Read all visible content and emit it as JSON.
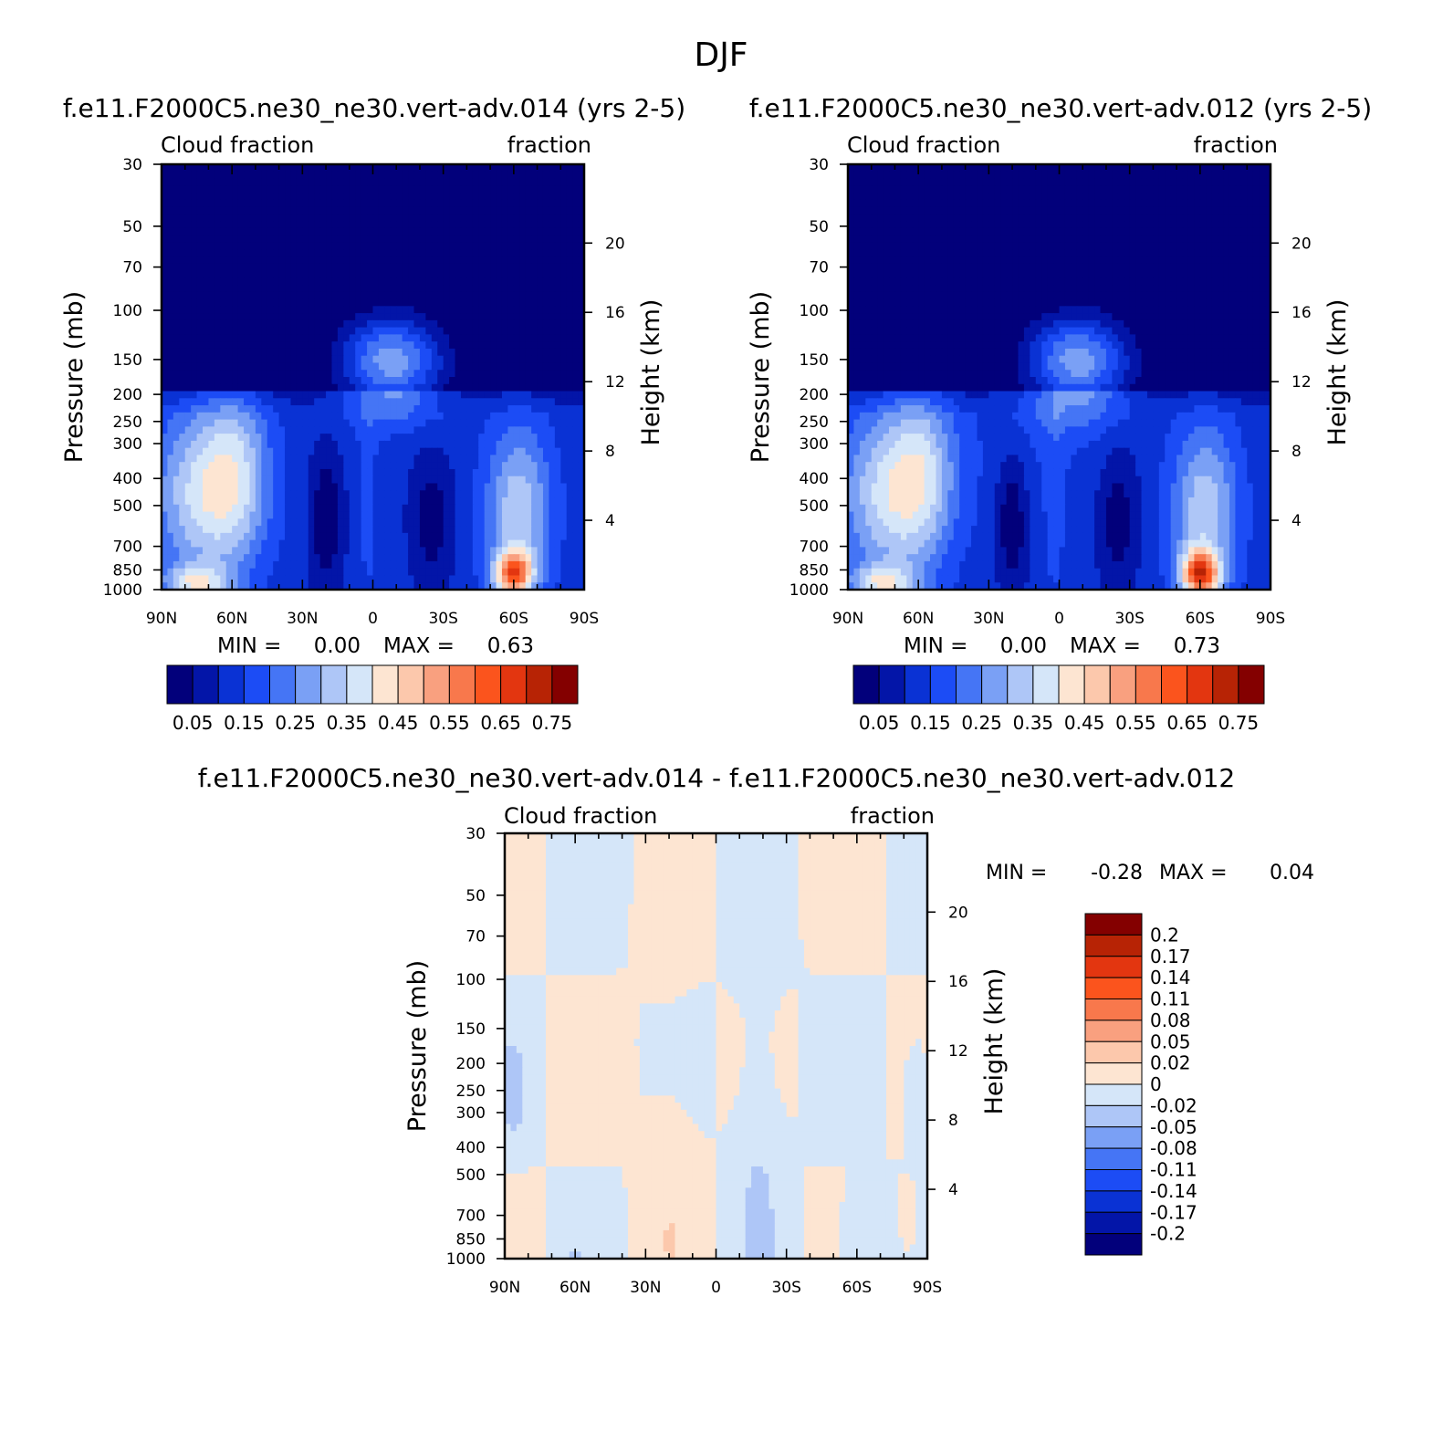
{
  "figure": {
    "title": "DJF",
    "colors": {
      "seq": [
        "#02007b",
        "#0315a8",
        "#0a32d4",
        "#1c4cf5",
        "#4575f5",
        "#7aa0f5",
        "#aec6f7",
        "#d5e6f9",
        "#fde5d2",
        "#fcc8ac",
        "#f9a07f",
        "#f8784c",
        "#fb541d",
        "#e33610",
        "#b72305",
        "#840000"
      ],
      "diff": [
        "#02007b",
        "#0315a8",
        "#0a32d4",
        "#1c4cf5",
        "#4575f5",
        "#7aa0f5",
        "#aec6f7",
        "#d5e6f9",
        "#fde5d2",
        "#fcc8ac",
        "#f9a07f",
        "#f8784c",
        "#fb541d",
        "#e33610",
        "#b72305",
        "#840000"
      ]
    }
  },
  "chart_data": [
    {
      "type": "heatmap",
      "title": "f.e11.F2000C5.ne30_ne30.vert-adv.014 (yrs 2-5)",
      "left_label": "Cloud fraction",
      "right_label": "fraction",
      "ylabel": "Pressure (mb)",
      "ylabel_right": "Height (km)",
      "x_ticklabels": [
        "90N",
        "60N",
        "30N",
        "0",
        "30S",
        "60S",
        "90S"
      ],
      "x_values": [
        90,
        60,
        30,
        0,
        -30,
        -60,
        -90
      ],
      "y_ticklabels": [
        "30",
        "50",
        "70",
        "100",
        "150",
        "200",
        "250",
        "300",
        "400",
        "500",
        "700",
        "850",
        "1000"
      ],
      "y_values": [
        30,
        50,
        70,
        100,
        150,
        200,
        250,
        300,
        400,
        500,
        700,
        850,
        1000
      ],
      "y_right_ticklabels": [
        "20",
        "16",
        "12",
        "8",
        "4"
      ],
      "y_right_values": [
        20,
        16,
        12,
        8,
        4
      ],
      "ylim": [
        1000,
        30
      ],
      "min_label": "MIN =",
      "min_value": "0.00",
      "max_label": "MAX =",
      "max_value": "0.63",
      "colorbar_ticks": [
        "0.05",
        "0.15",
        "0.25",
        "0.35",
        "0.45",
        "0.55",
        "0.65",
        "0.75"
      ],
      "contour_levels": [
        0.05,
        0.1,
        0.15,
        0.2,
        0.25,
        0.3,
        0.35,
        0.4,
        0.45,
        0.5,
        0.55,
        0.6,
        0.65,
        0.7,
        0.75
      ]
    },
    {
      "type": "heatmap",
      "title": "f.e11.F2000C5.ne30_ne30.vert-adv.012 (yrs 2-5)",
      "left_label": "Cloud fraction",
      "right_label": "fraction",
      "ylabel": "Pressure (mb)",
      "ylabel_right": "Height (km)",
      "x_ticklabels": [
        "90N",
        "60N",
        "30N",
        "0",
        "30S",
        "60S",
        "90S"
      ],
      "x_values": [
        90,
        60,
        30,
        0,
        -30,
        -60,
        -90
      ],
      "y_ticklabels": [
        "30",
        "50",
        "70",
        "100",
        "150",
        "200",
        "250",
        "300",
        "400",
        "500",
        "700",
        "850",
        "1000"
      ],
      "y_values": [
        30,
        50,
        70,
        100,
        150,
        200,
        250,
        300,
        400,
        500,
        700,
        850,
        1000
      ],
      "y_right_ticklabels": [
        "20",
        "16",
        "12",
        "8",
        "4"
      ],
      "y_right_values": [
        20,
        16,
        12,
        8,
        4
      ],
      "ylim": [
        1000,
        30
      ],
      "min_label": "MIN =",
      "min_value": "0.00",
      "max_label": "MAX =",
      "max_value": "0.73",
      "colorbar_ticks": [
        "0.05",
        "0.15",
        "0.25",
        "0.35",
        "0.45",
        "0.55",
        "0.65",
        "0.75"
      ],
      "contour_levels": [
        0.05,
        0.1,
        0.15,
        0.2,
        0.25,
        0.3,
        0.35,
        0.4,
        0.45,
        0.5,
        0.55,
        0.6,
        0.65,
        0.7,
        0.75
      ]
    },
    {
      "type": "heatmap",
      "title": "f.e11.F2000C5.ne30_ne30.vert-adv.014 - f.e11.F2000C5.ne30_ne30.vert-adv.012",
      "left_label": "Cloud fraction",
      "right_label": "fraction",
      "ylabel": "Pressure (mb)",
      "ylabel_right": "Height (km)",
      "x_ticklabels": [
        "90N",
        "60N",
        "30N",
        "0",
        "30S",
        "60S",
        "90S"
      ],
      "x_values": [
        90,
        60,
        30,
        0,
        -30,
        -60,
        -90
      ],
      "y_ticklabels": [
        "30",
        "50",
        "70",
        "100",
        "150",
        "200",
        "250",
        "300",
        "400",
        "500",
        "700",
        "850",
        "1000"
      ],
      "y_values": [
        30,
        50,
        70,
        100,
        150,
        200,
        250,
        300,
        400,
        500,
        700,
        850,
        1000
      ],
      "y_right_ticklabels": [
        "20",
        "16",
        "12",
        "8",
        "4"
      ],
      "y_right_values": [
        20,
        16,
        12,
        8,
        4
      ],
      "ylim": [
        1000,
        30
      ],
      "min_label": "MIN =",
      "min_value": "-0.28",
      "max_label": "MAX =",
      "max_value": "0.04",
      "colorbar_ticks": [
        "0.2",
        "0.17",
        "0.14",
        "0.11",
        "0.08",
        "0.05",
        "0.02",
        "0",
        "-0.02",
        "-0.05",
        "-0.08",
        "-0.11",
        "-0.14",
        "-0.17",
        "-0.2"
      ],
      "contour_levels": [
        -0.2,
        -0.17,
        -0.14,
        -0.11,
        -0.08,
        -0.05,
        -0.02,
        0,
        0.02,
        0.05,
        0.08,
        0.11,
        0.14,
        0.17,
        0.2
      ]
    }
  ]
}
